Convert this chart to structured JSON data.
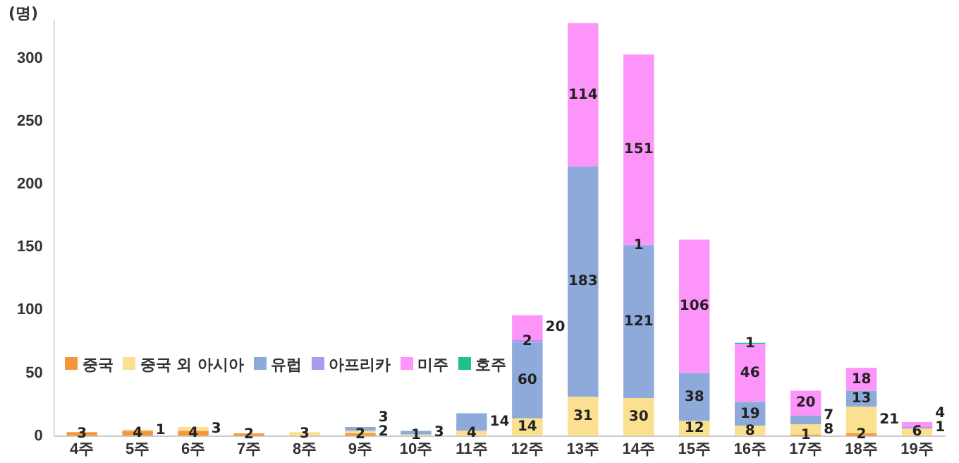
{
  "chart_data": {
    "type": "bar",
    "stacked": true,
    "ylabel": "(명)",
    "categories": [
      "4주",
      "5주",
      "6주",
      "7주",
      "8주",
      "9주",
      "10주",
      "11주",
      "12주",
      "13주",
      "14주",
      "15주",
      "16주",
      "17주",
      "18주",
      "19주"
    ],
    "series": [
      {
        "name": "중국",
        "color": "#f5963c",
        "values": [
          3,
          4,
          4,
          2,
          null,
          2,
          null,
          null,
          null,
          null,
          null,
          null,
          null,
          1,
          2,
          null
        ]
      },
      {
        "name": "중국 외 아시아",
        "color": "#fbe08f",
        "values": [
          null,
          1,
          3,
          null,
          3,
          2,
          1,
          4,
          14,
          31,
          30,
          12,
          8,
          8,
          21,
          6
        ]
      },
      {
        "name": "유럽",
        "color": "#8eaadb",
        "values": [
          null,
          null,
          null,
          null,
          null,
          3,
          3,
          14,
          60,
          183,
          121,
          38,
          19,
          7,
          13,
          null
        ]
      },
      {
        "name": "아프리카",
        "color": "#a99cf0",
        "values": [
          null,
          null,
          null,
          null,
          null,
          null,
          null,
          null,
          2,
          null,
          1,
          null,
          null,
          null,
          null,
          1
        ]
      },
      {
        "name": "미주",
        "color": "#fd94f9",
        "values": [
          null,
          null,
          null,
          null,
          null,
          null,
          null,
          null,
          20,
          114,
          151,
          106,
          46,
          20,
          18,
          4
        ]
      },
      {
        "name": "호주",
        "color": "#1fbf8f",
        "values": [
          null,
          null,
          null,
          null,
          null,
          null,
          null,
          null,
          null,
          null,
          null,
          null,
          1,
          null,
          null,
          null
        ]
      }
    ],
    "ylim": [
      0,
      330
    ],
    "yticks": [
      0,
      50,
      100,
      150,
      200,
      250,
      300
    ],
    "grid": false,
    "legend": "bottom left",
    "data_labels": true
  }
}
